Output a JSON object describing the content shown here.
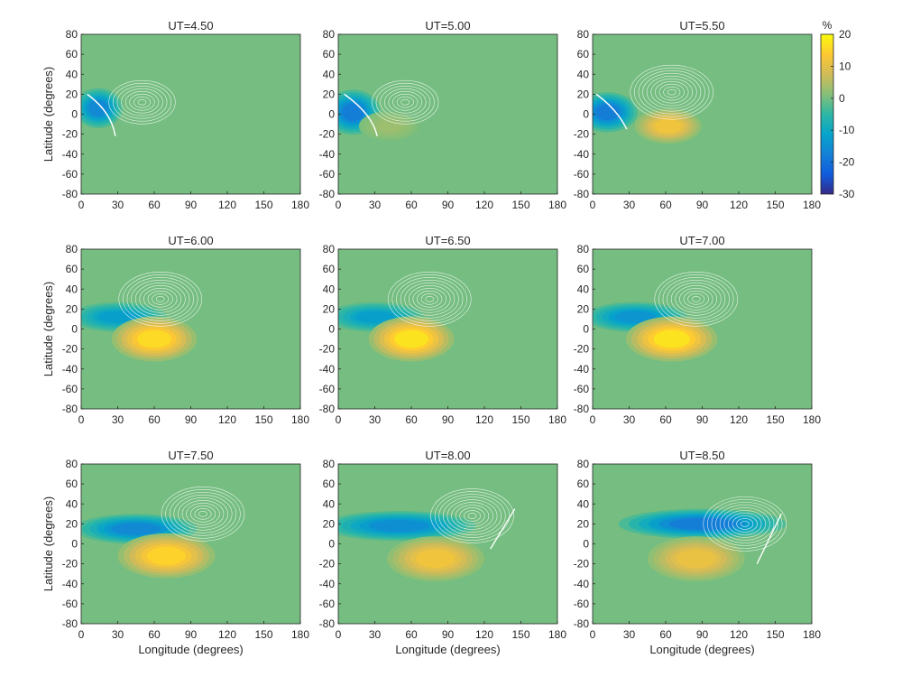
{
  "chart_data": {
    "type": "heatmap",
    "layout": "3x3 grid of contour maps with shared colorbar",
    "xlabel": "Longitude (degrees)",
    "ylabel": "Latitude (degrees)",
    "xlim": [
      0,
      180
    ],
    "ylim": [
      -80,
      80
    ],
    "xticks": [
      0,
      30,
      60,
      90,
      120,
      150,
      180
    ],
    "yticks": [
      -80,
      -60,
      -40,
      -20,
      0,
      20,
      40,
      60,
      80
    ],
    "colorbar": {
      "unit": "%",
      "range": [
        -30,
        20
      ],
      "ticks": [
        20,
        10,
        0,
        -10,
        -20,
        -30
      ],
      "colormap": "parula",
      "stops": [
        "#352a87",
        "#0f5cdd",
        "#1481d6",
        "#06a4ca",
        "#2eb7a4",
        "#87bf77",
        "#d1bb59",
        "#fec832",
        "#f9fb0e"
      ]
    },
    "panels": [
      {
        "title": "UT=4.50",
        "features": [
          {
            "lon": 14,
            "lat": 6,
            "value": -16,
            "rlon": 16,
            "rlat": 16
          }
        ],
        "contour_center": [
          50,
          12
        ],
        "contour_rings": 8,
        "terminator": {
          "lon": [
            5,
            25,
            28
          ],
          "lat": [
            20,
            2,
            -22
          ]
        }
      },
      {
        "title": "UT=5.00",
        "features": [
          {
            "lon": 12,
            "lat": 2,
            "value": -18,
            "rlon": 18,
            "rlat": 18
          },
          {
            "lon": 42,
            "lat": -12,
            "value": 3,
            "rlon": 20,
            "rlat": 12
          }
        ],
        "contour_center": [
          55,
          12
        ],
        "contour_rings": 8,
        "terminator": {
          "lon": [
            5,
            28,
            32
          ],
          "lat": [
            20,
            0,
            -22
          ]
        }
      },
      {
        "title": "UT=5.50",
        "features": [
          {
            "lon": 12,
            "lat": 2,
            "value": -18,
            "rlon": 20,
            "rlat": 16
          },
          {
            "lon": 62,
            "lat": -12,
            "value": 12,
            "rlon": 22,
            "rlat": 14
          }
        ],
        "contour_center": [
          65,
          22
        ],
        "contour_rings": 10,
        "terminator": {
          "lon": [
            3,
            20,
            28
          ],
          "lat": [
            20,
            5,
            -15
          ]
        }
      },
      {
        "title": "UT=6.00",
        "features": [
          {
            "lon": 30,
            "lat": 12,
            "value": -12,
            "rlon": 32,
            "rlat": 12
          },
          {
            "lon": 60,
            "lat": -10,
            "value": 16,
            "rlon": 28,
            "rlat": 18
          }
        ],
        "contour_center": [
          65,
          30
        ],
        "contour_rings": 10
      },
      {
        "title": "UT=6.50",
        "features": [
          {
            "lon": 30,
            "lat": 12,
            "value": -12,
            "rlon": 32,
            "rlat": 12
          },
          {
            "lon": 60,
            "lat": -10,
            "value": 17,
            "rlon": 28,
            "rlat": 18
          }
        ],
        "contour_center": [
          75,
          30
        ],
        "contour_rings": 10
      },
      {
        "title": "UT=7.00",
        "features": [
          {
            "lon": 35,
            "lat": 12,
            "value": -14,
            "rlon": 34,
            "rlat": 12
          },
          {
            "lon": 65,
            "lat": -10,
            "value": 17,
            "rlon": 30,
            "rlat": 18
          }
        ],
        "contour_center": [
          85,
          30
        ],
        "contour_rings": 10
      },
      {
        "title": "UT=7.50",
        "features": [
          {
            "lon": 45,
            "lat": 15,
            "value": -16,
            "rlon": 40,
            "rlat": 12
          },
          {
            "lon": 70,
            "lat": -12,
            "value": 15,
            "rlon": 32,
            "rlat": 18
          }
        ],
        "contour_center": [
          100,
          30
        ],
        "contour_rings": 10
      },
      {
        "title": "UT=8.00",
        "features": [
          {
            "lon": 50,
            "lat": 18,
            "value": -15,
            "rlon": 50,
            "rlat": 12
          },
          {
            "lon": 80,
            "lat": -15,
            "value": 12,
            "rlon": 32,
            "rlat": 18
          }
        ],
        "contour_center": [
          110,
          28
        ],
        "contour_rings": 10,
        "terminator": {
          "lon": [
            125,
            135,
            145
          ],
          "lat": [
            -5,
            15,
            35
          ]
        }
      },
      {
        "title": "UT=8.50",
        "features": [
          {
            "lon": 90,
            "lat": 20,
            "value": -18,
            "rlon": 55,
            "rlat": 12
          },
          {
            "lon": 85,
            "lat": -15,
            "value": 11,
            "rlon": 32,
            "rlat": 18
          }
        ],
        "contour_center": [
          125,
          20
        ],
        "contour_rings": 10,
        "terminator": {
          "lon": [
            135,
            145,
            155
          ],
          "lat": [
            -20,
            5,
            30
          ]
        }
      }
    ]
  }
}
